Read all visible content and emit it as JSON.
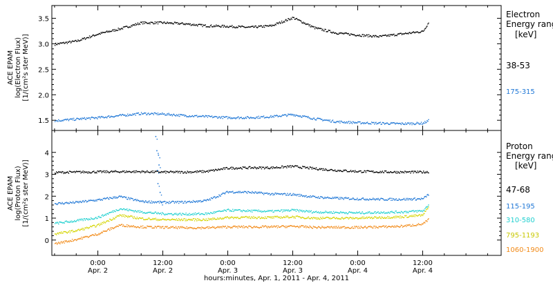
{
  "xaxis": {
    "ticks": [
      {
        "t": 12,
        "time": "0:00",
        "date": "Apr. 2"
      },
      {
        "t": 24,
        "time": "12:00",
        "date": "Apr. 2"
      },
      {
        "t": 36,
        "time": "0:00",
        "date": "Apr. 3"
      },
      {
        "t": 48,
        "time": "12:00",
        "date": "Apr. 3"
      },
      {
        "t": 60,
        "time": "0:00",
        "date": "Apr. 4"
      },
      {
        "t": 72,
        "time": "12:00",
        "date": "Apr. 4"
      }
    ],
    "label": "hours:minutes, Apr.  1, 2011 - Apr.  4, 2011"
  },
  "chart_data": [
    {
      "type": "scatter",
      "panel": "electron",
      "ylabel_lines": [
        "ACE EPAM",
        "log(Electron Flux)",
        "[1/(cm²s ster MeV)]"
      ],
      "ylim": [
        1.3,
        3.75
      ],
      "yticks": [
        1.5,
        2.0,
        2.5,
        3.0,
        3.5
      ],
      "ytick_labels": [
        "1.5",
        "2.0",
        "2.5",
        "3.0",
        "3.5"
      ],
      "xlim_hours": [
        3.5,
        86.5
      ],
      "legend_title": [
        "Electron",
        "Energy range",
        "[keV]"
      ],
      "series": [
        {
          "name": "38-53",
          "color": "#000000",
          "hours": [
            4,
            8,
            12,
            16,
            20,
            24,
            28,
            32,
            36,
            40,
            44,
            48,
            52,
            56,
            60,
            64,
            68,
            72,
            73
          ],
          "values": [
            3.0,
            3.06,
            3.2,
            3.3,
            3.42,
            3.42,
            3.4,
            3.36,
            3.35,
            3.33,
            3.36,
            3.52,
            3.32,
            3.22,
            3.18,
            3.15,
            3.2,
            3.25,
            3.42
          ]
        },
        {
          "name": "175-315",
          "color": "#1f77d6",
          "hours": [
            4,
            8,
            12,
            16,
            20,
            24,
            28,
            32,
            36,
            40,
            44,
            48,
            52,
            56,
            60,
            64,
            68,
            72,
            73
          ],
          "values": [
            1.5,
            1.53,
            1.56,
            1.6,
            1.64,
            1.63,
            1.6,
            1.58,
            1.56,
            1.56,
            1.58,
            1.62,
            1.54,
            1.48,
            1.46,
            1.45,
            1.44,
            1.45,
            1.5
          ]
        }
      ]
    },
    {
      "type": "scatter",
      "panel": "proton",
      "ylabel_lines": [
        "ACE EPAM",
        "log(Proton Flux)",
        "[1/(cm²s ster MeV)]"
      ],
      "ylim": [
        -0.7,
        5.0
      ],
      "yticks": [
        0,
        1,
        2,
        3,
        4
      ],
      "ytick_labels": [
        "0",
        "1",
        "2",
        "3",
        "4"
      ],
      "xlim_hours": [
        3.5,
        86.5
      ],
      "legend_title": [
        "Proton",
        "Energy range",
        "[keV]"
      ],
      "series": [
        {
          "name": "47-68",
          "color": "#000000",
          "hours": [
            4,
            8,
            12,
            16,
            20,
            24,
            28,
            32,
            36,
            40,
            44,
            48,
            52,
            56,
            60,
            64,
            68,
            72,
            73
          ],
          "values": [
            3.1,
            3.12,
            3.13,
            3.14,
            3.14,
            3.12,
            3.12,
            3.15,
            3.3,
            3.32,
            3.32,
            3.38,
            3.28,
            3.2,
            3.15,
            3.13,
            3.12,
            3.12,
            3.13
          ]
        },
        {
          "name": "115-195",
          "color": "#1f77d6",
          "hours": [
            4,
            8,
            12,
            16,
            20,
            24,
            28,
            32,
            36,
            40,
            44,
            48,
            52,
            56,
            60,
            64,
            68,
            72,
            73
          ],
          "values": [
            1.68,
            1.74,
            1.85,
            2.0,
            1.78,
            1.74,
            1.75,
            1.82,
            2.22,
            2.2,
            2.12,
            2.1,
            1.98,
            1.93,
            1.9,
            1.88,
            1.88,
            1.9,
            2.1
          ]
        },
        {
          "name": "310-580",
          "color": "#22d0d0",
          "hours": [
            4,
            8,
            12,
            16,
            20,
            24,
            28,
            32,
            36,
            40,
            44,
            48,
            52,
            56,
            60,
            64,
            68,
            72,
            73
          ],
          "values": [
            0.78,
            0.9,
            1.05,
            1.45,
            1.3,
            1.22,
            1.2,
            1.22,
            1.38,
            1.35,
            1.33,
            1.38,
            1.3,
            1.28,
            1.26,
            1.28,
            1.3,
            1.35,
            1.62
          ]
        },
        {
          "name": "795-1193",
          "color": "#d4d400",
          "hours": [
            4,
            8,
            12,
            16,
            20,
            24,
            28,
            32,
            36,
            40,
            44,
            48,
            52,
            56,
            60,
            64,
            68,
            72,
            73
          ],
          "values": [
            0.3,
            0.45,
            0.7,
            1.15,
            1.0,
            0.95,
            0.95,
            0.95,
            1.05,
            1.05,
            1.05,
            1.08,
            1.02,
            1.02,
            1.02,
            1.05,
            1.08,
            1.15,
            1.55
          ]
        },
        {
          "name": "1060-1900",
          "color": "#f28a17",
          "hours": [
            4,
            8,
            12,
            16,
            20,
            24,
            28,
            32,
            36,
            40,
            44,
            48,
            52,
            56,
            60,
            64,
            68,
            72,
            73
          ],
          "values": [
            -0.15,
            0.05,
            0.3,
            0.7,
            0.62,
            0.6,
            0.58,
            0.58,
            0.62,
            0.62,
            0.62,
            0.65,
            0.6,
            0.6,
            0.6,
            0.62,
            0.65,
            0.75,
            0.95
          ]
        }
      ],
      "spike": {
        "color": "#1f77d6",
        "hours": [
          22.6,
          22.8,
          23.1,
          23.2,
          22.9,
          23.0,
          23.4,
          23.6
        ],
        "values": [
          4.75,
          4.1,
          3.9,
          3.45,
          3.2,
          2.6,
          2.2,
          1.75
        ]
      }
    }
  ]
}
